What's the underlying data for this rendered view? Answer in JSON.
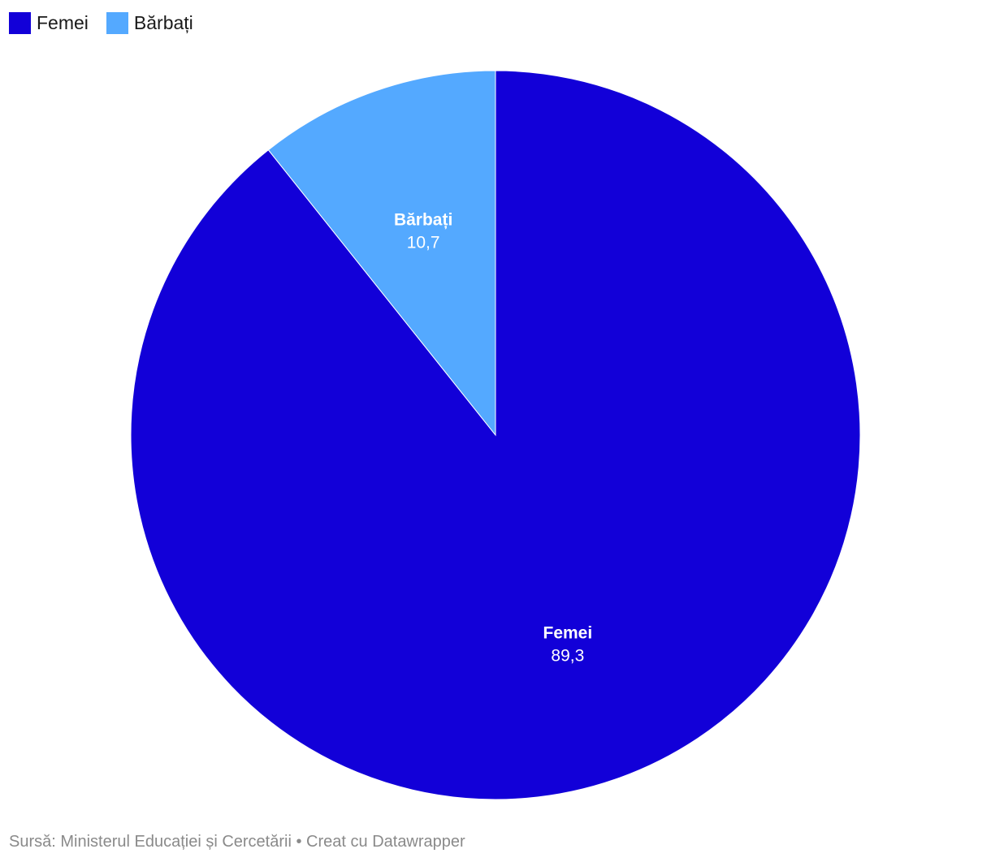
{
  "legend": [
    {
      "label": "Femei",
      "color": "#1200D8"
    },
    {
      "label": "Bărbați",
      "color": "#54A9FF"
    }
  ],
  "chart_data": {
    "type": "pie",
    "categories": [
      "Femei",
      "Bărbați"
    ],
    "values": [
      89.3,
      10.7
    ],
    "value_labels": [
      "89,3",
      "10,7"
    ],
    "colors": [
      "#1200D8",
      "#54A9FF"
    ],
    "legend_position": "top-left"
  },
  "footer": {
    "source": "Sursă: Ministerul Educației și Cercetării",
    "separator": "•",
    "credit": "Creat cu Datawrapper"
  }
}
